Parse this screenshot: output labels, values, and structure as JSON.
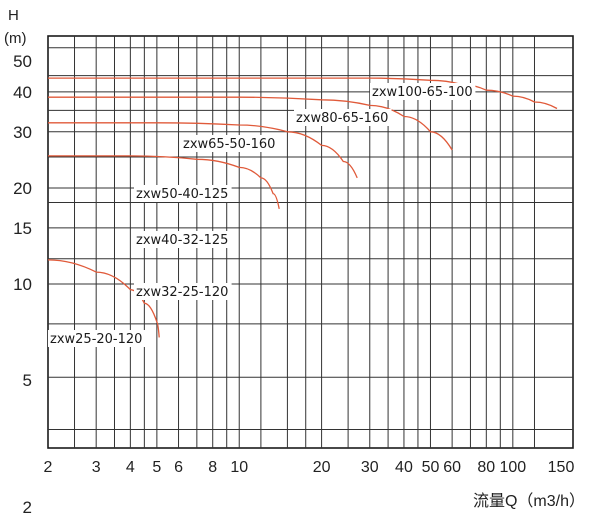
{
  "chart_data": {
    "type": "line",
    "y_axis": {
      "label": "H",
      "unit": "(m)",
      "scale": "log"
    },
    "x_axis": {
      "label": "流量Q（m3/h）",
      "scale": "log"
    },
    "x_ticks": [
      2,
      3,
      4,
      5,
      6,
      8,
      10,
      20,
      30,
      40,
      50,
      60,
      80,
      100,
      150
    ],
    "y_ticks": [
      2,
      5,
      10,
      15,
      20,
      30,
      40,
      50
    ],
    "xlim": [
      2,
      150
    ],
    "ylim": [
      1.5,
      60
    ],
    "grid": true,
    "series": [
      {
        "name": "zxw25-20-120",
        "x": [
          2,
          3,
          4,
          4.5,
          5,
          5.1
        ],
        "y": [
          11.9,
          10.9,
          9.6,
          8.7,
          7.6,
          6.8
        ]
      },
      {
        "name": "zxw32-25-120",
        "x": [],
        "y": []
      },
      {
        "name": "zxw40-32-125",
        "x": [
          2,
          4,
          7,
          10,
          12,
          13.3,
          14
        ],
        "y": [
          25.2,
          25.2,
          24.6,
          23.2,
          21.5,
          19.2,
          17.2
        ]
      },
      {
        "name": "zxw50-40-125",
        "x": [],
        "y": []
      },
      {
        "name": "zxw65-50-160",
        "x": [
          2,
          5,
          10,
          15,
          20,
          24,
          27
        ],
        "y": [
          32,
          32,
          31.5,
          30,
          27.2,
          24.2,
          21.5
        ]
      },
      {
        "name": "zxw80-65-160",
        "x": [
          2,
          10,
          20,
          30,
          40,
          50,
          60
        ],
        "y": [
          38.5,
          38.5,
          37.8,
          36.3,
          33.5,
          30,
          26.3
        ]
      },
      {
        "name": "zxw100-65-100",
        "x": [
          2,
          10,
          30,
          50,
          65,
          80,
          100,
          120,
          145
        ],
        "y": [
          44.2,
          44.2,
          44.2,
          43.5,
          42.2,
          40.5,
          38.8,
          37.2,
          35.5
        ]
      }
    ],
    "series_color": "#e05a3a"
  }
}
